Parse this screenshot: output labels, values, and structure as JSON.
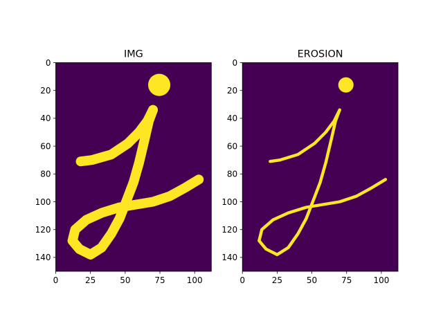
{
  "colors": {
    "background": "#440154",
    "foreground": "#fde725",
    "axis": "#000000"
  },
  "chart_data": [
    {
      "type": "heatmap",
      "title": "IMG",
      "xlabel": "",
      "ylabel": "",
      "xlim": [
        0,
        112
      ],
      "ylim": [
        150,
        0
      ],
      "xticks": [
        0,
        25,
        50,
        75,
        100
      ],
      "yticks": [
        0,
        20,
        40,
        60,
        80,
        100,
        120,
        140
      ],
      "dot": {
        "cx": 74.5,
        "cy": 16,
        "r": 8
      },
      "strokes": [
        {
          "name": "crossbar",
          "width": 7,
          "points": [
            [
              18,
              71
            ],
            [
              26,
              70
            ],
            [
              40,
              66
            ],
            [
              52,
              58
            ],
            [
              60,
              50
            ],
            [
              66,
              42
            ],
            [
              70,
              34
            ]
          ]
        },
        {
          "name": "stem",
          "width": 7,
          "points": [
            [
              70,
              34
            ],
            [
              67,
              42
            ],
            [
              64,
              55
            ],
            [
              60,
              72
            ],
            [
              56,
              86
            ],
            [
              51,
              99
            ],
            [
              46,
              112
            ],
            [
              40,
              123
            ],
            [
              33,
              133
            ],
            [
              25,
              138
            ],
            [
              17,
              134
            ],
            [
              12,
              128
            ],
            [
              14,
              120
            ],
            [
              22,
              113
            ],
            [
              33,
              108
            ],
            [
              46,
              104
            ],
            [
              58,
              102
            ],
            [
              70,
              100
            ],
            [
              82,
              96
            ],
            [
              93,
              90
            ],
            [
              103,
              84
            ]
          ]
        }
      ]
    },
    {
      "type": "heatmap",
      "title": "EROSION",
      "xlabel": "",
      "ylabel": "",
      "xlim": [
        0,
        112
      ],
      "ylim": [
        150,
        0
      ],
      "xticks": [
        0,
        25,
        50,
        75,
        100
      ],
      "yticks": [
        0,
        20,
        40,
        60,
        80,
        100,
        120,
        140
      ],
      "dot": {
        "cx": 74.5,
        "cy": 16,
        "r": 5.5
      },
      "strokes": [
        {
          "name": "crossbar",
          "width": 2.2,
          "points": [
            [
              20,
              71
            ],
            [
              27,
              70
            ],
            [
              40,
              66
            ],
            [
              52,
              58
            ],
            [
              60,
              50
            ],
            [
              66,
              42
            ],
            [
              70,
              34
            ]
          ]
        },
        {
          "name": "stem",
          "width": 2.2,
          "points": [
            [
              70,
              34
            ],
            [
              67,
              42
            ],
            [
              64,
              55
            ],
            [
              60,
              72
            ],
            [
              56,
              86
            ],
            [
              51,
              99
            ],
            [
              46,
              112
            ],
            [
              40,
              123
            ],
            [
              33,
              133
            ],
            [
              25,
              138
            ],
            [
              17,
              134
            ],
            [
              12,
              128
            ],
            [
              14,
              120
            ],
            [
              22,
              113
            ],
            [
              33,
              108
            ],
            [
              46,
              104
            ],
            [
              58,
              102
            ],
            [
              70,
              100
            ],
            [
              82,
              96
            ],
            [
              93,
              90
            ],
            [
              103,
              84
            ]
          ]
        }
      ]
    }
  ]
}
